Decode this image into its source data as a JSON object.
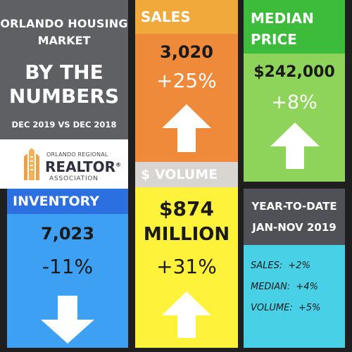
{
  "colors": {
    "background": "#1f1f1f",
    "gray_panel": "#5f6064",
    "sales_header": "#f2a93b",
    "sales_body": "#ee8a3a",
    "median_header": "#3dbb3a",
    "median_body": "#8fd45a",
    "inventory_header": "#2b6fe0",
    "inventory_body": "#3da0f2",
    "volume_header": "#d9d5d0",
    "volume_body": "#fff23a",
    "ytd_header": "#4f5157",
    "ytd_body": "#48d1e6"
  },
  "title": {
    "line1": "ORLANDO HOUSING",
    "line2": "MARKET",
    "big1": "BY THE",
    "big2": "NUMBERS",
    "subtitle": "DEC 2019 VS DEC 2018"
  },
  "logo": {
    "small": "ORLANDO REGIONAL",
    "main": "REALTOR",
    "registered": "®",
    "bottom": "ASSOCIATION"
  },
  "sales": {
    "header": "SALES",
    "value": "3,020",
    "change": "+25%",
    "direction_icon": "arrow-up-icon"
  },
  "median": {
    "header_line1": "MEDIAN",
    "header_line2": "PRICE",
    "value": "$242,000",
    "change": "+8%",
    "direction_icon": "arrow-up-icon"
  },
  "inventory": {
    "header": "INVENTORY",
    "value": "7,023",
    "change": "-11%",
    "direction_icon": "arrow-down-icon"
  },
  "volume": {
    "header": "$ VOLUME",
    "value_line1": "$874",
    "value_line2": "MILLION",
    "change": "+31%",
    "direction_icon": "arrow-up-icon"
  },
  "ytd": {
    "header_line1": "YEAR-TO-DATE",
    "header_line2": "JAN-NOV 2019",
    "items": [
      {
        "label": "SALES:",
        "value": "+2%"
      },
      {
        "label": "MEDIAN:",
        "value": "+4%"
      },
      {
        "label": "VOLUME:",
        "value": "+5%"
      }
    ]
  }
}
